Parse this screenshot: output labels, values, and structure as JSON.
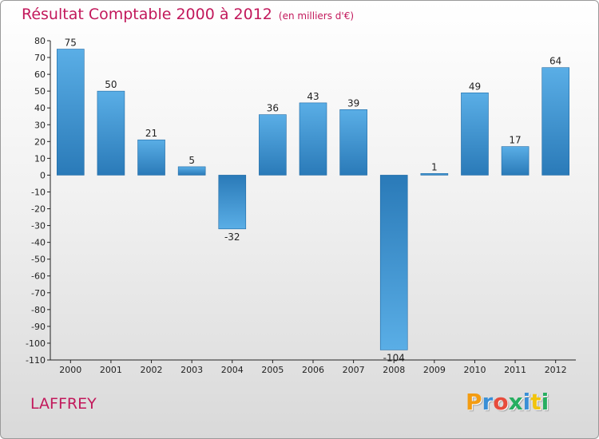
{
  "chart_data": {
    "type": "bar",
    "title": "Résultat Comptable 2000 à 2012",
    "subtitle": "(en milliers d'€)",
    "categories": [
      "2000",
      "2001",
      "2002",
      "2003",
      "2004",
      "2005",
      "2006",
      "2007",
      "2008",
      "2009",
      "2010",
      "2011",
      "2012"
    ],
    "values": [
      75,
      50,
      21,
      5,
      -32,
      36,
      43,
      39,
      -104,
      1,
      49,
      17,
      64
    ],
    "ylim": [
      -110,
      80
    ],
    "ytick_step": 10,
    "xlabel": "",
    "ylabel": "",
    "grid": false
  },
  "footer": {
    "commune": "LAFFREY",
    "brand_letters": [
      "P",
      "r",
      "o",
      "x",
      "i",
      "t",
      "i"
    ]
  },
  "colors": {
    "title": "#c2185b",
    "bar_dark": "#2a7ab8",
    "bar_light": "#5aaee6",
    "brand": [
      "#f39c12",
      "#3a8fd6",
      "#e74c3c",
      "#27ae60",
      "#3a8fd6",
      "#f1c40f",
      "#27ae60"
    ]
  }
}
